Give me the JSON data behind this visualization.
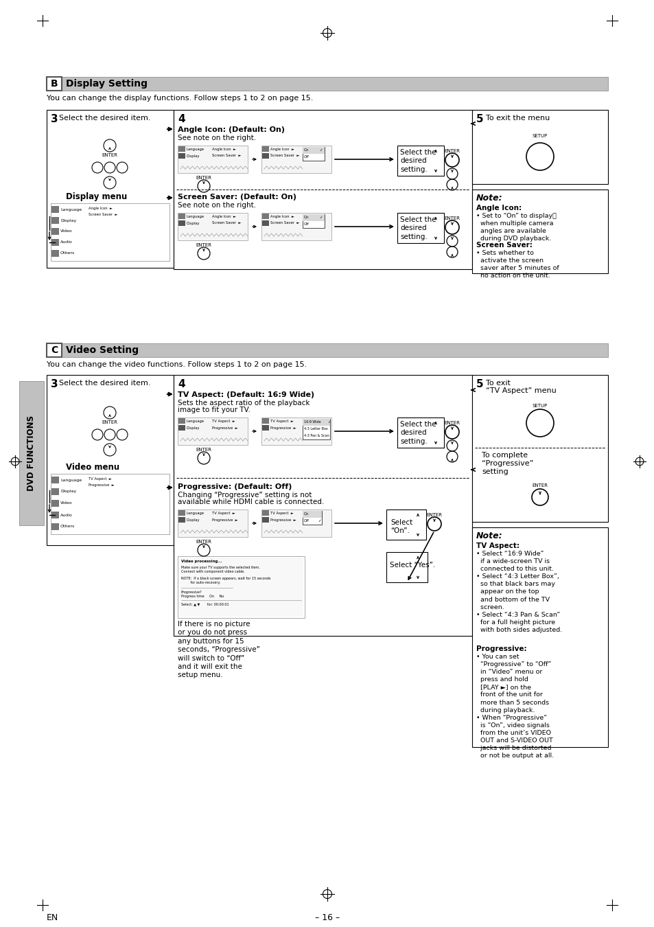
{
  "page_bg": "#ffffff",
  "page_width": 9.54,
  "page_height": 13.5,
  "section_b_title": "Display Setting",
  "section_b_letter": "B",
  "section_b_desc": "You can change the display functions. Follow steps 1 to 2 on page 15.",
  "section_c_title": "Video Setting",
  "section_c_letter": "C",
  "section_c_desc": "You can change the video functions. Follow steps 1 to 2 on page 15.",
  "footer_text": "EN",
  "footer_page": "– 16 –"
}
